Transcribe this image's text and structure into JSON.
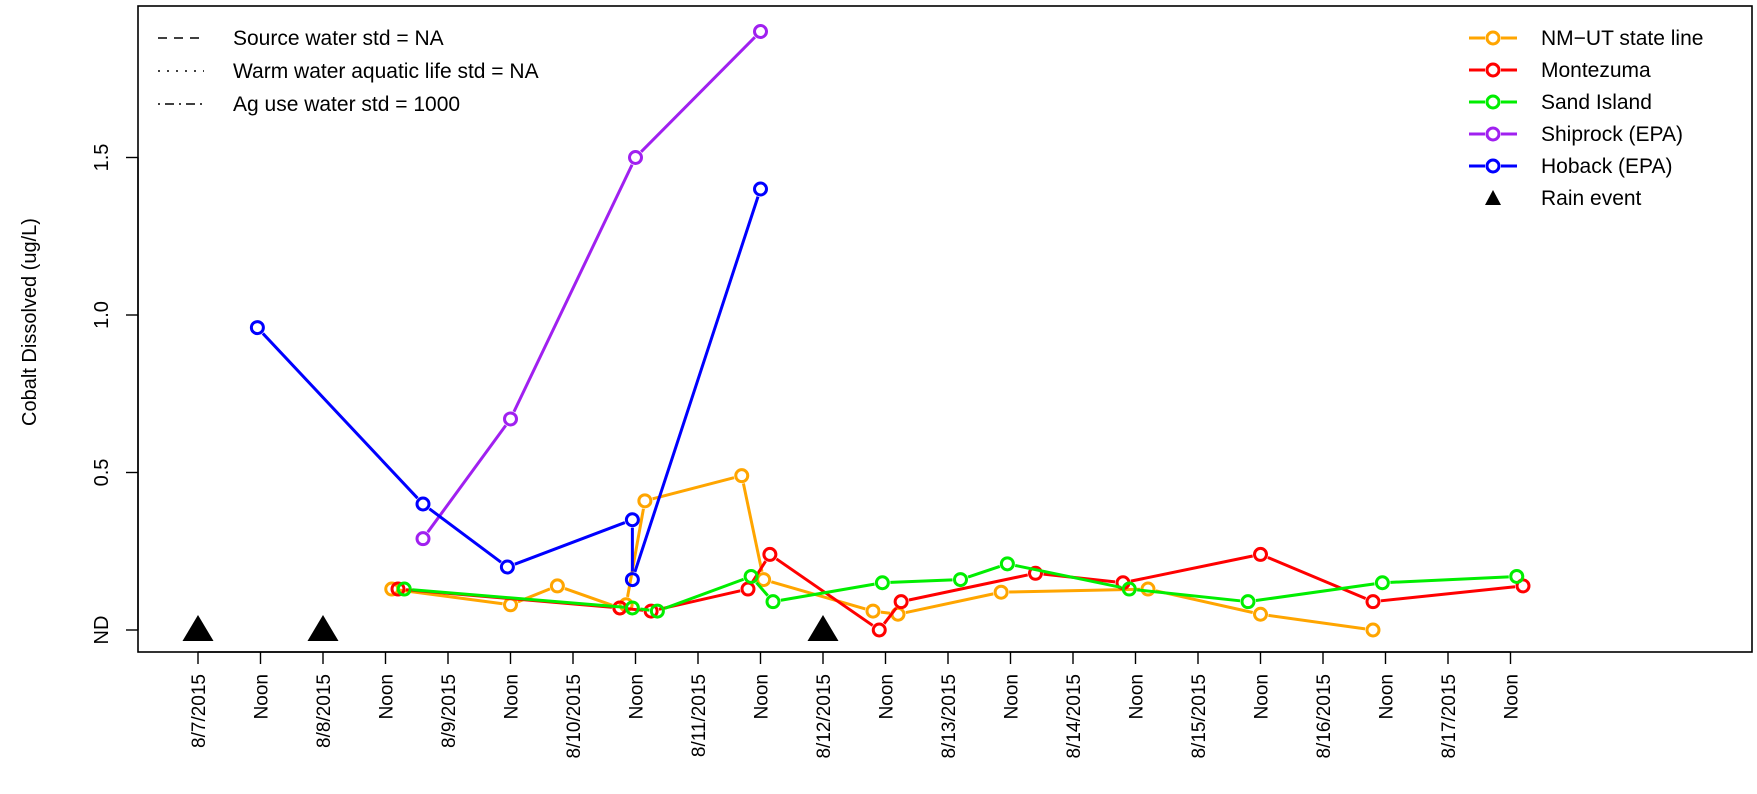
{
  "chart_data": {
    "type": "line",
    "ylabel": "Cobalt Dissolved (ug/L)",
    "xlim": [
      0,
      24
    ],
    "ylim": [
      -0.08,
      1.98
    ],
    "y_ticks": [
      {
        "label": "ND",
        "value": 0
      },
      {
        "label": "0.5",
        "value": 0.5
      },
      {
        "label": "1.0",
        "value": 1.0
      },
      {
        "label": "1.5",
        "value": 1.5
      }
    ],
    "x_ticks": [
      {
        "label": "8/7/2015",
        "value": 0
      },
      {
        "label": "Noon",
        "value": 1
      },
      {
        "label": "8/8/2015",
        "value": 2
      },
      {
        "label": "Noon",
        "value": 3
      },
      {
        "label": "8/9/2015",
        "value": 4
      },
      {
        "label": "Noon",
        "value": 5
      },
      {
        "label": "8/10/2015",
        "value": 6
      },
      {
        "label": "Noon",
        "value": 7
      },
      {
        "label": "8/11/2015",
        "value": 8
      },
      {
        "label": "Noon",
        "value": 9
      },
      {
        "label": "8/12/2015",
        "value": 10
      },
      {
        "label": "Noon",
        "value": 11
      },
      {
        "label": "8/13/2015",
        "value": 12
      },
      {
        "label": "Noon",
        "value": 13
      },
      {
        "label": "8/14/2015",
        "value": 14
      },
      {
        "label": "Noon",
        "value": 15
      },
      {
        "label": "8/15/2015",
        "value": 16
      },
      {
        "label": "Noon",
        "value": 17
      },
      {
        "label": "8/16/2015",
        "value": 18
      },
      {
        "label": "Noon",
        "value": 19
      },
      {
        "label": "8/17/2015",
        "value": 20
      },
      {
        "label": "Noon",
        "value": 21
      }
    ],
    "series": [
      {
        "name": "NM−UT state line",
        "color": "#FFA500",
        "points": [
          [
            3.1,
            0.13
          ],
          [
            5.0,
            0.08
          ],
          [
            5.75,
            0.14
          ],
          [
            6.75,
            0.07
          ],
          [
            6.85,
            0.08
          ],
          [
            7.15,
            0.41
          ],
          [
            8.7,
            0.49
          ],
          [
            9.05,
            0.16
          ],
          [
            10.8,
            0.06
          ],
          [
            11.2,
            0.05
          ],
          [
            12.85,
            0.12
          ],
          [
            15.2,
            0.13
          ],
          [
            17.0,
            0.05
          ],
          [
            18.8,
            0.0
          ]
        ]
      },
      {
        "name": "Montezuma",
        "color": "#FF0000",
        "points": [
          [
            3.2,
            0.13
          ],
          [
            6.75,
            0.07
          ],
          [
            7.25,
            0.06
          ],
          [
            8.8,
            0.13
          ],
          [
            9.15,
            0.24
          ],
          [
            10.9,
            0.0
          ],
          [
            11.25,
            0.09
          ],
          [
            13.4,
            0.18
          ],
          [
            14.8,
            0.15
          ],
          [
            17.0,
            0.24
          ],
          [
            18.8,
            0.09
          ],
          [
            21.2,
            0.14
          ]
        ]
      },
      {
        "name": "Sand Island",
        "color": "#00EE00",
        "points": [
          [
            3.3,
            0.13
          ],
          [
            6.95,
            0.07
          ],
          [
            7.35,
            0.06
          ],
          [
            8.85,
            0.17
          ],
          [
            9.2,
            0.09
          ],
          [
            10.95,
            0.15
          ],
          [
            12.2,
            0.16
          ],
          [
            12.95,
            0.21
          ],
          [
            14.9,
            0.13
          ],
          [
            16.8,
            0.09
          ],
          [
            18.95,
            0.15
          ],
          [
            21.1,
            0.17
          ]
        ]
      },
      {
        "name": "Shiprock (EPA)",
        "color": "#A020F0",
        "points": [
          [
            3.6,
            0.29
          ],
          [
            5.0,
            0.67
          ],
          [
            7.0,
            1.5
          ],
          [
            9.0,
            1.9
          ]
        ]
      },
      {
        "name": "Hoback (EPA)",
        "color": "#0000FF",
        "points": [
          [
            0.95,
            0.96
          ],
          [
            3.6,
            0.4
          ],
          [
            4.95,
            0.2
          ],
          [
            6.95,
            0.35
          ],
          [
            6.95,
            0.16
          ],
          [
            9.0,
            1.4
          ]
        ]
      }
    ],
    "rain_events": [
      0,
      2,
      10
    ],
    "rain_event_label": "Rain event",
    "standards": [
      {
        "label": "Source water std = NA",
        "dash": "dashed"
      },
      {
        "label": "Warm water aquatic life std = NA",
        "dash": "dotted"
      },
      {
        "label": "Ag use water std = 1000",
        "dash": "dotdash"
      }
    ],
    "legend_position": "top-right",
    "standards_legend_position": "top-left",
    "grid": false
  }
}
